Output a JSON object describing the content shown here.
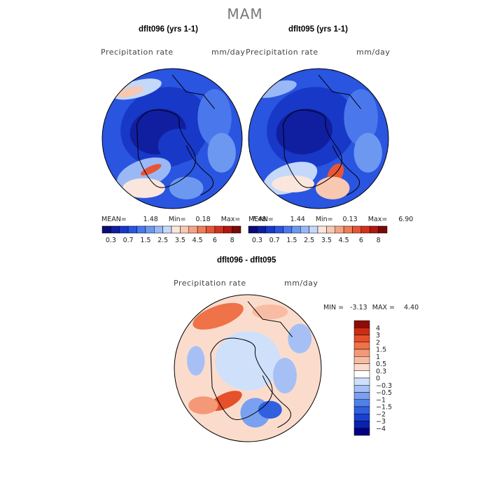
{
  "title": "MAM",
  "panels": [
    {
      "title": "dflt096 (yrs 1-1)",
      "variable": "Precipitation rate",
      "units": "mm/day",
      "stats": {
        "mean_label": "MEAN=",
        "mean": "1.48",
        "min_label": "Min=",
        "min": "0.18",
        "max_label": "Max=",
        "max": "7.48"
      }
    },
    {
      "title": "dflt095 (yrs 1-1)",
      "variable": "Precipitation rate",
      "units": "mm/day",
      "stats": {
        "mean_label": "MEAN=",
        "mean": "1.44",
        "min_label": "Min=",
        "min": "0.13",
        "max_label": "Max=",
        "max": "6.90"
      }
    }
  ],
  "abs_colorbar": {
    "colors": [
      "#0a0a78",
      "#101ea0",
      "#1838c8",
      "#2a55e0",
      "#4a78ec",
      "#6c98f0",
      "#9ab8f6",
      "#c4d8fa",
      "#fae6dc",
      "#f8c8b0",
      "#f4a484",
      "#ef7e58",
      "#e65636",
      "#d43020",
      "#b01810",
      "#7a0a05"
    ],
    "tick_labels": [
      "0.3",
      "0.7",
      "1.5",
      "2.5",
      "3.5",
      "4.5",
      "6",
      "8"
    ]
  },
  "diff": {
    "title": "dflt096 - dflt095",
    "variable": "Precipitation rate",
    "units": "mm/day",
    "min_label": "MIN =",
    "min": "-3.13",
    "max_label": "MAX =",
    "max": "4.40",
    "colorbar": {
      "colors": [
        "#000080",
        "#0a22b0",
        "#1a40d0",
        "#3060e0",
        "#5080ea",
        "#7aa0f0",
        "#a6c0f6",
        "#cfe0fb",
        "#ffffff",
        "#fbdccc",
        "#f8bca4",
        "#f49878",
        "#ef7248",
        "#e6502a",
        "#cc2c14",
        "#8e0c05"
      ],
      "labels": [
        "4",
        "3",
        "2",
        "1.5",
        "1",
        "0.5",
        "0.3",
        "0",
        "−0.3",
        "−0.5",
        "−1",
        "−1.5",
        "−2",
        "−3",
        "−4"
      ]
    }
  }
}
